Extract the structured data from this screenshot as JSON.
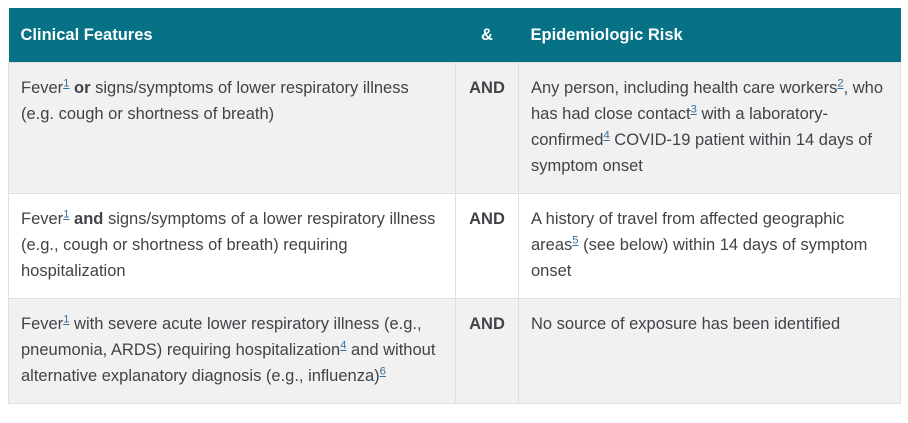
{
  "colors": {
    "accent": "#077286",
    "header_text": "#ffffff",
    "body_text": "#404347",
    "link": "#366e9c",
    "row_shade": "#f1f1f2",
    "border": "#e0e0e0",
    "page_bg": "#ffffff"
  },
  "table": {
    "headers": [
      {
        "label": "Clinical Features"
      },
      {
        "label": "&"
      },
      {
        "label": "Epidemiologic Risk"
      }
    ],
    "rows": [
      {
        "clinical": [
          {
            "t": "Fever"
          },
          {
            "sup": "1"
          },
          {
            "t": " "
          },
          {
            "t": "or",
            "b": true
          },
          {
            "t": " signs/symptoms of lower respiratory illness (e.g. cough or shortness of breath)"
          }
        ],
        "conjunction": "AND",
        "epi": [
          {
            "t": "Any person, including health care workers"
          },
          {
            "sup": "2"
          },
          {
            "t": ", who has had close contact"
          },
          {
            "sup": "3"
          },
          {
            "t": " with a laboratory-confirmed"
          },
          {
            "sup": "4"
          },
          {
            "t": " COVID-19 patient within 14 days of symptom onset"
          }
        ]
      },
      {
        "clinical": [
          {
            "t": "Fever"
          },
          {
            "sup": "1"
          },
          {
            "t": " "
          },
          {
            "t": "and",
            "b": true
          },
          {
            "t": " signs/symptoms of a lower respiratory illness (e.g., cough or shortness of breath) requiring hospitalization"
          }
        ],
        "conjunction": "AND",
        "epi": [
          {
            "t": "A history of travel from affected geographic areas"
          },
          {
            "sup": "5"
          },
          {
            "t": " (see below) within 14 days of symptom onset"
          }
        ]
      },
      {
        "clinical": [
          {
            "t": "Fever"
          },
          {
            "sup": "1"
          },
          {
            "t": " with severe acute lower respiratory illness (e.g., pneumonia, ARDS) requiring hospitalization"
          },
          {
            "sup": "4"
          },
          {
            "t": " and without alternative explanatory diagnosis (e.g., influenza)"
          },
          {
            "sup": "6"
          }
        ],
        "conjunction": "AND",
        "epi": [
          {
            "t": "No source of exposure has been identified"
          }
        ]
      }
    ]
  }
}
